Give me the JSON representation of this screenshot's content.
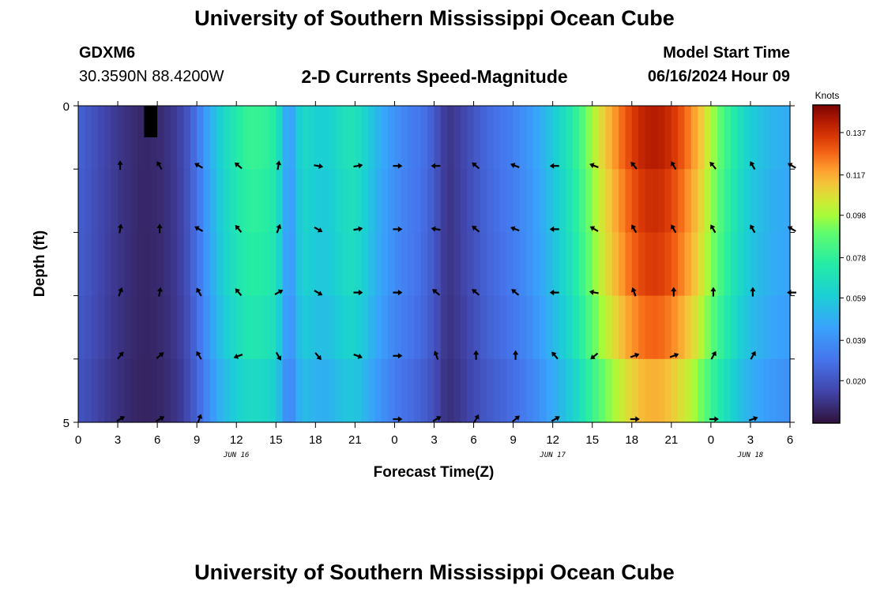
{
  "header": {
    "title": "University of Southern Mississippi Ocean Cube",
    "station_id": "GDXM6",
    "coordinates": "30.3590N  88.4200W",
    "subtitle": "2-D Currents Speed-Magnitude",
    "model_start_label": "Model Start Time",
    "model_start_value": "06/16/2024 Hour 09"
  },
  "footer": {
    "title": "University of Southern Mississippi Ocean Cube"
  },
  "chart_data": {
    "type": "heatmap",
    "title": "2-D Currents Speed-Magnitude",
    "xlabel": "Forecast Time(Z)",
    "ylabel": "Depth (ft)",
    "x_range_hours": [
      0,
      54
    ],
    "y_range": [
      0,
      5
    ],
    "y_tick_labels": [
      "0",
      "5"
    ],
    "x_tick_labels": [
      "0",
      "3",
      "6",
      "9",
      "12",
      "15",
      "18",
      "21",
      "0",
      "3",
      "6",
      "9",
      "12",
      "15",
      "18",
      "21",
      "0",
      "3",
      "6"
    ],
    "date_labels": [
      {
        "hour": 12,
        "text": "JUN 16"
      },
      {
        "hour": 36,
        "text": "JUN 17"
      },
      {
        "hour": 51,
        "text": "JUN 18"
      }
    ],
    "colorbar": {
      "title": "Knots",
      "range": [
        0.0,
        0.15
      ],
      "ticks": [
        0.02,
        0.039,
        0.059,
        0.078,
        0.098,
        0.117,
        0.137
      ],
      "tick_labels": [
        "0.020",
        "0.039",
        "0.059",
        "0.078",
        "0.098",
        "0.117",
        "0.137"
      ]
    },
    "speed_profile": {
      "hours": [
        0,
        1,
        2,
        3,
        4,
        5,
        6,
        7,
        8,
        9,
        10,
        11,
        12,
        13,
        14,
        15,
        16,
        17,
        18,
        19,
        20,
        21,
        22,
        23,
        24,
        25,
        26,
        27,
        28,
        29,
        30,
        31,
        32,
        33,
        34,
        35,
        36,
        37,
        38,
        39,
        40,
        41,
        42,
        43,
        44,
        45,
        46,
        47,
        48,
        49,
        50,
        51,
        52,
        53,
        54
      ],
      "knots": [
        0.024,
        0.02,
        0.015,
        0.011,
        0.008,
        0.006,
        0.007,
        0.01,
        0.016,
        0.03,
        0.048,
        0.064,
        0.074,
        0.08,
        0.079,
        0.074,
        0.04,
        0.066,
        0.061,
        0.06,
        0.068,
        0.07,
        0.06,
        0.048,
        0.04,
        0.034,
        0.03,
        0.022,
        0.01,
        0.014,
        0.02,
        0.026,
        0.03,
        0.034,
        0.04,
        0.048,
        0.058,
        0.068,
        0.082,
        0.098,
        0.112,
        0.124,
        0.134,
        0.141,
        0.142,
        0.137,
        0.128,
        0.116,
        0.1,
        0.084,
        0.07,
        0.06,
        0.054,
        0.05,
        0.048
      ]
    },
    "depth_factor": [
      1.0,
      0.97,
      0.95,
      0.9,
      0.82
    ],
    "missing_cells": [
      {
        "hour": 5.5,
        "depth_row": 0
      }
    ],
    "arrow_rows": [
      {
        "depth_row": 1,
        "arrows": [
          {
            "hour": 3,
            "dir_deg": 0
          },
          {
            "hour": 6,
            "dir_deg": 330
          },
          {
            "hour": 9,
            "dir_deg": 300
          },
          {
            "hour": 12,
            "dir_deg": 310
          },
          {
            "hour": 15,
            "dir_deg": 10
          },
          {
            "hour": 18,
            "dir_deg": 100
          },
          {
            "hour": 21,
            "dir_deg": 80
          },
          {
            "hour": 24,
            "dir_deg": 90
          },
          {
            "hour": 27,
            "dir_deg": 270
          },
          {
            "hour": 30,
            "dir_deg": 310
          },
          {
            "hour": 33,
            "dir_deg": 290
          },
          {
            "hour": 36,
            "dir_deg": 270
          },
          {
            "hour": 39,
            "dir_deg": 290
          },
          {
            "hour": 42,
            "dir_deg": 320
          },
          {
            "hour": 45,
            "dir_deg": 330
          },
          {
            "hour": 48,
            "dir_deg": 320
          },
          {
            "hour": 51,
            "dir_deg": 330
          },
          {
            "hour": 54,
            "dir_deg": 300
          }
        ]
      },
      {
        "depth_row": 2,
        "arrows": [
          {
            "hour": 3,
            "dir_deg": 10
          },
          {
            "hour": 6,
            "dir_deg": 0
          },
          {
            "hour": 9,
            "dir_deg": 300
          },
          {
            "hour": 12,
            "dir_deg": 320
          },
          {
            "hour": 15,
            "dir_deg": 20
          },
          {
            "hour": 18,
            "dir_deg": 120
          },
          {
            "hour": 21,
            "dir_deg": 80
          },
          {
            "hour": 24,
            "dir_deg": 90
          },
          {
            "hour": 27,
            "dir_deg": 280
          },
          {
            "hour": 30,
            "dir_deg": 310
          },
          {
            "hour": 33,
            "dir_deg": 290
          },
          {
            "hour": 36,
            "dir_deg": 270
          },
          {
            "hour": 39,
            "dir_deg": 300
          },
          {
            "hour": 42,
            "dir_deg": 330
          },
          {
            "hour": 45,
            "dir_deg": 330
          },
          {
            "hour": 48,
            "dir_deg": 330
          },
          {
            "hour": 51,
            "dir_deg": 330
          },
          {
            "hour": 54,
            "dir_deg": 300
          }
        ]
      },
      {
        "depth_row": 3,
        "arrows": [
          {
            "hour": 3,
            "dir_deg": 20
          },
          {
            "hour": 6,
            "dir_deg": 10
          },
          {
            "hour": 9,
            "dir_deg": 330
          },
          {
            "hour": 12,
            "dir_deg": 320
          },
          {
            "hour": 15,
            "dir_deg": 60
          },
          {
            "hour": 18,
            "dir_deg": 120
          },
          {
            "hour": 21,
            "dir_deg": 90
          },
          {
            "hour": 24,
            "dir_deg": 90
          },
          {
            "hour": 27,
            "dir_deg": 310
          },
          {
            "hour": 30,
            "dir_deg": 310
          },
          {
            "hour": 33,
            "dir_deg": 310
          },
          {
            "hour": 36,
            "dir_deg": 270
          },
          {
            "hour": 39,
            "dir_deg": 280
          },
          {
            "hour": 42,
            "dir_deg": 340
          },
          {
            "hour": 45,
            "dir_deg": 0
          },
          {
            "hour": 48,
            "dir_deg": 0
          },
          {
            "hour": 51,
            "dir_deg": 0
          },
          {
            "hour": 54,
            "dir_deg": 270
          }
        ]
      },
      {
        "depth_row": 4,
        "arrows": [
          {
            "hour": 3,
            "dir_deg": 40
          },
          {
            "hour": 6,
            "dir_deg": 50
          },
          {
            "hour": 9,
            "dir_deg": 330
          },
          {
            "hour": 12,
            "dir_deg": 250
          },
          {
            "hour": 15,
            "dir_deg": 150
          },
          {
            "hour": 18,
            "dir_deg": 140
          },
          {
            "hour": 21,
            "dir_deg": 110
          },
          {
            "hour": 24,
            "dir_deg": 90
          },
          {
            "hour": 27,
            "dir_deg": 340
          },
          {
            "hour": 30,
            "dir_deg": 0
          },
          {
            "hour": 33,
            "dir_deg": 0
          },
          {
            "hour": 36,
            "dir_deg": 320
          },
          {
            "hour": 39,
            "dir_deg": 230
          },
          {
            "hour": 42,
            "dir_deg": 70
          },
          {
            "hour": 45,
            "dir_deg": 70
          },
          {
            "hour": 48,
            "dir_deg": 30
          },
          {
            "hour": 51,
            "dir_deg": 30
          }
        ]
      },
      {
        "depth_row": 5,
        "arrows": [
          {
            "hour": 3,
            "dir_deg": 60
          },
          {
            "hour": 6,
            "dir_deg": 60
          },
          {
            "hour": 9,
            "dir_deg": 20
          },
          {
            "hour": 24,
            "dir_deg": 90
          },
          {
            "hour": 27,
            "dir_deg": 60
          },
          {
            "hour": 30,
            "dir_deg": 30
          },
          {
            "hour": 33,
            "dir_deg": 50
          },
          {
            "hour": 36,
            "dir_deg": 60
          },
          {
            "hour": 42,
            "dir_deg": 90
          },
          {
            "hour": 48,
            "dir_deg": 90
          },
          {
            "hour": 51,
            "dir_deg": 70
          }
        ]
      }
    ]
  }
}
